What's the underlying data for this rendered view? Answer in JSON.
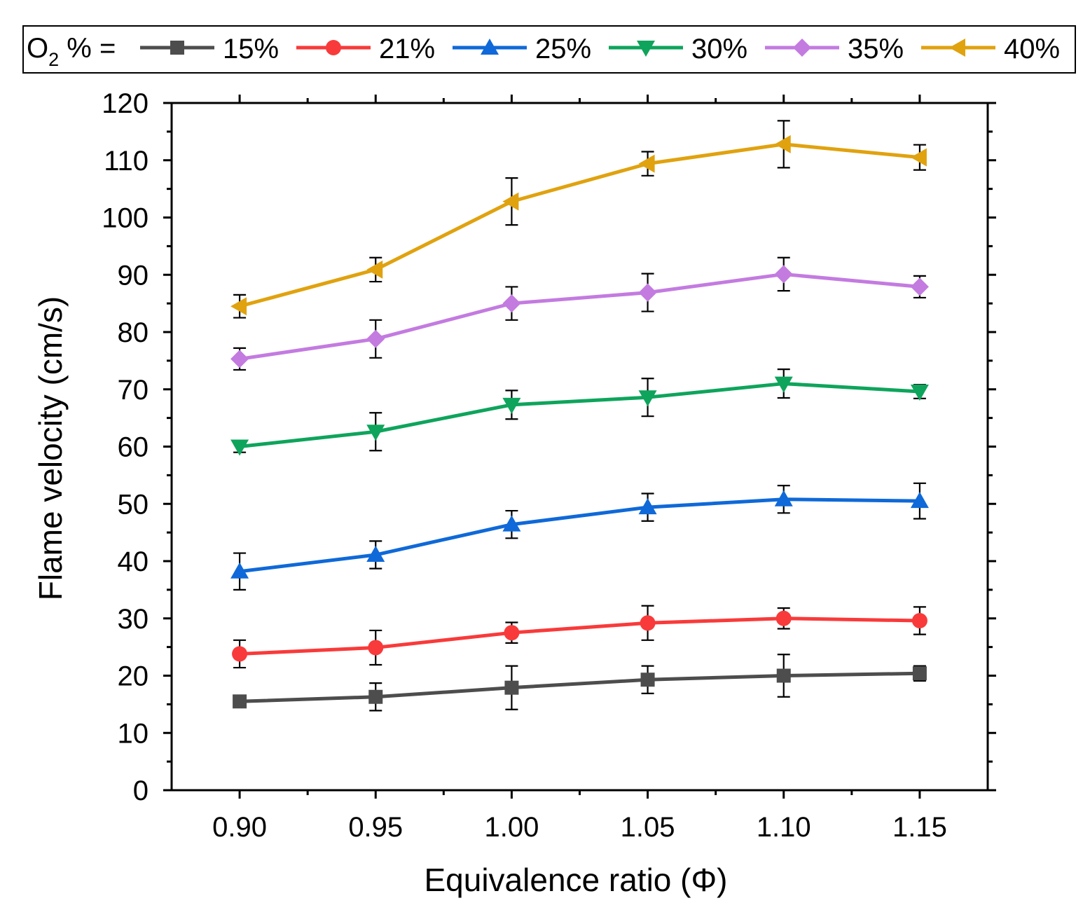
{
  "chart_data": {
    "type": "line",
    "title": "",
    "xlabel": "Equivalence ratio (Φ)",
    "ylabel": "Flame velocity (cm/s)",
    "xlim": [
      0.875,
      1.175
    ],
    "ylim": [
      0,
      120
    ],
    "x": [
      0.9,
      0.95,
      1.0,
      1.05,
      1.1,
      1.15
    ],
    "x_tick_labels": [
      "0.90",
      "0.95",
      "1.00",
      "1.05",
      "1.10",
      "1.15"
    ],
    "y_ticks": [
      0,
      10,
      20,
      30,
      40,
      50,
      60,
      70,
      80,
      90,
      100,
      110,
      120
    ],
    "y_tick_labels": [
      "0",
      "10",
      "20",
      "30",
      "40",
      "50",
      "60",
      "70",
      "80",
      "90",
      "100",
      "110",
      "120"
    ],
    "legend": {
      "placement": "top",
      "prefix_main": "O",
      "prefix_sub": "2",
      "prefix_rest": " % ="
    },
    "series": [
      {
        "name": "15%",
        "color": "#4d4d4d",
        "marker": "square",
        "values": [
          15.5,
          16.3,
          17.9,
          19.3,
          20.0,
          20.4
        ],
        "errors": [
          0.9,
          2.4,
          3.8,
          2.4,
          3.7,
          1.3
        ]
      },
      {
        "name": "21%",
        "color": "#f93a3a",
        "marker": "circle",
        "values": [
          23.8,
          24.9,
          27.5,
          29.2,
          30.0,
          29.6
        ],
        "errors": [
          2.4,
          3.0,
          1.8,
          3.0,
          1.8,
          2.4
        ]
      },
      {
        "name": "25%",
        "color": "#0f69d8",
        "marker": "triangle-up",
        "values": [
          38.2,
          41.1,
          46.4,
          49.4,
          50.8,
          50.5
        ],
        "errors": [
          3.2,
          2.4,
          2.4,
          2.4,
          2.4,
          3.1
        ]
      },
      {
        "name": "30%",
        "color": "#0ea45c",
        "marker": "triangle-down",
        "values": [
          60.0,
          62.6,
          67.3,
          68.6,
          71.0,
          69.6
        ],
        "errors": [
          1.0,
          3.3,
          2.5,
          3.3,
          2.5,
          1.2
        ]
      },
      {
        "name": "35%",
        "color": "#c37be0",
        "marker": "diamond",
        "values": [
          75.3,
          78.8,
          85.0,
          86.9,
          90.1,
          87.9
        ],
        "errors": [
          1.9,
          3.3,
          2.9,
          3.3,
          2.9,
          1.9
        ]
      },
      {
        "name": "40%",
        "color": "#e0a20e",
        "marker": "triangle-left",
        "values": [
          84.5,
          90.9,
          102.8,
          109.4,
          112.8,
          110.5
        ],
        "errors": [
          2.0,
          2.1,
          4.1,
          2.1,
          4.1,
          2.2
        ]
      }
    ]
  }
}
